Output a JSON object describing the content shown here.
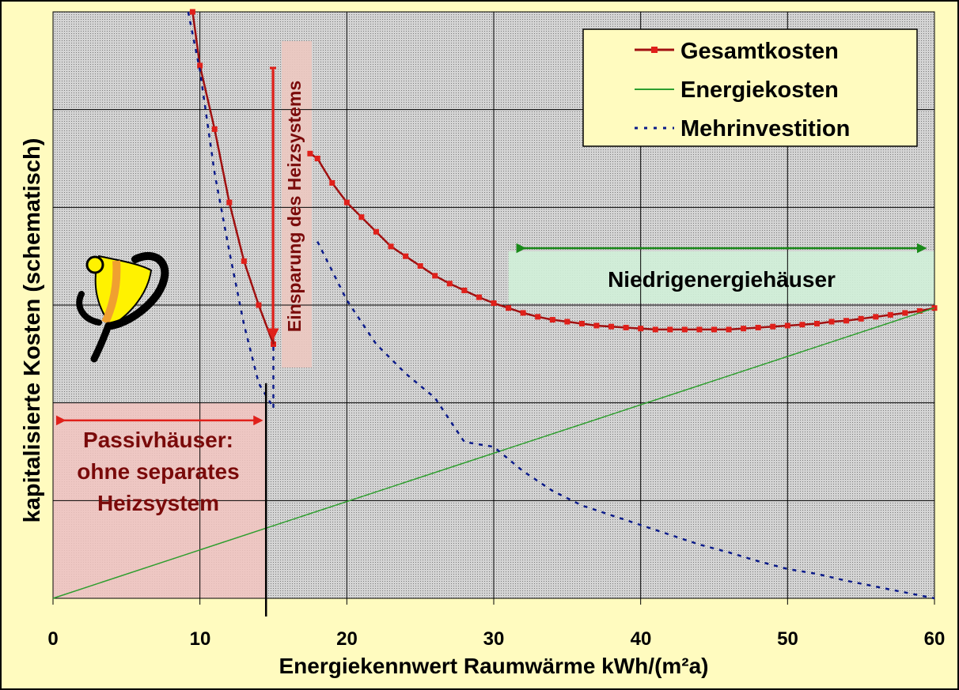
{
  "chart_data": {
    "type": "line",
    "xlabel": "Energiekennwert Raumwärme kWh/(m²a)",
    "ylabel": "kapitalisierte Kosten (schematisch)",
    "xlim": [
      0,
      60
    ],
    "ylim": [
      0,
      6
    ],
    "x_ticks": [
      "0",
      "10",
      "20",
      "30",
      "40",
      "50",
      "60"
    ],
    "grid": true,
    "legend_position": "top-right",
    "series": [
      {
        "name": "Gesamtkosten",
        "color": "#a01010",
        "style": "solid-line-square-markers",
        "segments": [
          {
            "x": [
              9.5,
              10,
              11,
              12,
              13,
              14,
              15
            ],
            "y": [
              6.0,
              5.45,
              4.8,
              4.05,
              3.45,
              3.0,
              2.6
            ]
          },
          {
            "x": [
              15,
              15
            ],
            "y": [
              2.6,
              5.4
            ]
          },
          {
            "x": [
              17.5,
              18,
              19,
              20,
              21,
              22,
              23,
              24,
              25,
              26,
              27,
              28,
              29,
              30,
              31,
              32,
              33,
              34,
              35,
              36,
              37,
              38,
              39,
              40,
              41,
              42,
              43,
              44,
              45,
              46,
              47,
              48,
              49,
              50,
              51,
              52,
              53,
              54,
              55,
              56,
              57,
              58,
              59,
              60
            ],
            "y": [
              4.55,
              4.5,
              4.25,
              4.05,
              3.9,
              3.75,
              3.6,
              3.5,
              3.4,
              3.3,
              3.22,
              3.15,
              3.08,
              3.02,
              2.97,
              2.92,
              2.88,
              2.85,
              2.83,
              2.81,
              2.79,
              2.78,
              2.77,
              2.76,
              2.75,
              2.75,
              2.75,
              2.75,
              2.75,
              2.75,
              2.76,
              2.77,
              2.78,
              2.79,
              2.8,
              2.81,
              2.83,
              2.84,
              2.86,
              2.88,
              2.9,
              2.92,
              2.94,
              2.97
            ]
          }
        ]
      },
      {
        "name": "Energiekosten",
        "color": "#2e9e2e",
        "style": "solid-thin",
        "segments": [
          {
            "x": [
              0,
              60
            ],
            "y": [
              0,
              2.97
            ]
          }
        ]
      },
      {
        "name": "Mehrinvestition",
        "color": "#0a1a8a",
        "style": "dotted",
        "segments": [
          {
            "x": [
              9.2,
              10,
              11,
              12,
              13,
              14,
              15
            ],
            "y": [
              6.0,
              5.4,
              4.35,
              3.55,
              2.8,
              2.2,
              1.95
            ]
          },
          {
            "x": [
              15,
              15
            ],
            "y": [
              1.95,
              2.6
            ]
          },
          {
            "x": [
              18,
              20,
              22,
              24,
              26,
              28,
              30,
              32,
              34,
              36,
              38,
              40,
              42,
              44,
              46,
              48,
              50,
              52,
              54,
              56,
              58,
              60
            ],
            "y": [
              3.65,
              3.05,
              2.6,
              2.3,
              2.05,
              1.6,
              1.55,
              1.3,
              1.1,
              0.95,
              0.85,
              0.75,
              0.65,
              0.55,
              0.47,
              0.38,
              0.3,
              0.25,
              0.18,
              0.12,
              0.06,
              0.0
            ]
          }
        ]
      }
    ],
    "annotations": {
      "passiv_text": [
        "Passivhäuser:",
        "ohne separates",
        "Heizsystem"
      ],
      "passiv_range": [
        0,
        14.5
      ],
      "einsparung_text": "Einsparung des Heizsystems",
      "niedrig_text": "Niedrigenergiehäuser",
      "niedrig_range": [
        31,
        60
      ],
      "marker_x": 14.5
    }
  },
  "colors": {
    "background": "#fffbbf",
    "plot_area": "#c8c8c8",
    "annotation_red": "#7a0a0a",
    "arrow_red": "#e0201a",
    "arrow_green": "#1a8a1a"
  }
}
